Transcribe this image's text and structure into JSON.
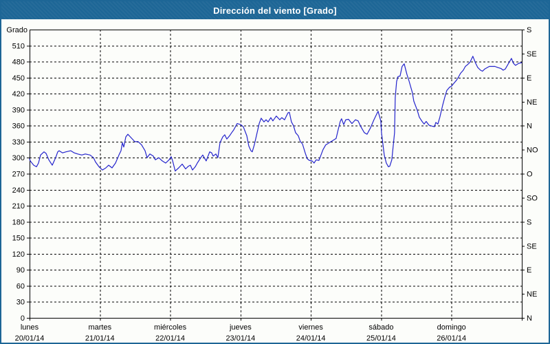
{
  "header": {
    "title": "Dirección del viento [Grado]"
  },
  "colors": {
    "accent": "#1D6696",
    "line": "#2222CC",
    "grid": "#000000",
    "plot_bg": "#FCFDFA",
    "title_text": "#FFFFFF"
  },
  "y_axis": {
    "label": "Grado",
    "ticks": [
      0,
      30,
      60,
      90,
      120,
      150,
      180,
      210,
      240,
      270,
      300,
      330,
      360,
      390,
      420,
      450,
      480,
      510
    ]
  },
  "right_axis": {
    "ticks": [
      {
        "deg": 0,
        "label": "N"
      },
      {
        "deg": 45,
        "label": "NE"
      },
      {
        "deg": 90,
        "label": "E"
      },
      {
        "deg": 135,
        "label": "SE"
      },
      {
        "deg": 180,
        "label": "S"
      },
      {
        "deg": 225,
        "label": "SO"
      },
      {
        "deg": 270,
        "label": "O"
      },
      {
        "deg": 315,
        "label": "NO"
      },
      {
        "deg": 360,
        "label": "N"
      },
      {
        "deg": 405,
        "label": "NE"
      },
      {
        "deg": 450,
        "label": "E"
      },
      {
        "deg": 495,
        "label": "SE"
      },
      {
        "deg": 540,
        "label": "S"
      }
    ]
  },
  "x_axis": {
    "days": [
      {
        "name": "lunes",
        "date": "20/01/14"
      },
      {
        "name": "martes",
        "date": "21/01/14"
      },
      {
        "name": "miércoles",
        "date": "22/01/14"
      },
      {
        "name": "jueves",
        "date": "23/01/14"
      },
      {
        "name": "viernes",
        "date": "24/01/14"
      },
      {
        "name": "sábado",
        "date": "25/01/14"
      },
      {
        "name": "domingo",
        "date": "26/01/14"
      }
    ]
  },
  "chart_data": {
    "type": "line",
    "title": "Dirección del viento [Grado]",
    "xlabel": "",
    "ylabel": "Grado",
    "ylim": [
      0,
      540
    ],
    "y_tick_step": 30,
    "grid": true,
    "legend": false,
    "x_unit": "days (t = days since 20/01/14 00:00)",
    "categories": [
      "lunes 20/01/14",
      "martes 21/01/14",
      "miércoles 22/01/14",
      "jueves 23/01/14",
      "viernes 24/01/14",
      "sábado 25/01/14",
      "domingo 26/01/14"
    ],
    "series": [
      {
        "name": "Dirección del viento (Grado)",
        "color": "#2222CC",
        "points": [
          [
            0,
            298
          ],
          [
            0.01,
            294
          ],
          [
            0.059,
            286
          ],
          [
            0.098,
            283
          ],
          [
            0.127,
            290
          ],
          [
            0.156,
            305
          ],
          [
            0.205,
            311
          ],
          [
            0.235,
            308
          ],
          [
            0.274,
            296
          ],
          [
            0.323,
            286
          ],
          [
            0.371,
            300
          ],
          [
            0.401,
            311
          ],
          [
            0.42,
            313
          ],
          [
            0.469,
            309
          ],
          [
            0.518,
            311
          ],
          [
            0.587,
            313
          ],
          [
            0.635,
            309
          ],
          [
            0.684,
            307
          ],
          [
            0.743,
            305
          ],
          [
            0.792,
            307
          ],
          [
            0.86,
            305
          ],
          [
            0.909,
            300
          ],
          [
            0.938,
            292
          ],
          [
            0.987,
            283
          ],
          [
            1.036,
            277
          ],
          [
            1.085,
            281
          ],
          [
            1.124,
            286
          ],
          [
            1.173,
            281
          ],
          [
            1.222,
            290
          ],
          [
            1.271,
            305
          ],
          [
            1.3,
            313
          ],
          [
            1.32,
            328
          ],
          [
            1.339,
            320
          ],
          [
            1.369,
            339
          ],
          [
            1.398,
            344
          ],
          [
            1.447,
            337
          ],
          [
            1.496,
            330
          ],
          [
            1.545,
            330
          ],
          [
            1.593,
            324
          ],
          [
            1.642,
            313
          ],
          [
            1.671,
            300
          ],
          [
            1.711,
            307
          ],
          [
            1.76,
            303
          ],
          [
            1.789,
            296
          ],
          [
            1.838,
            300
          ],
          [
            1.887,
            294
          ],
          [
            1.936,
            290
          ],
          [
            1.984,
            296
          ],
          [
            2.014,
            302
          ],
          [
            2.033,
            295
          ],
          [
            2.072,
            275
          ],
          [
            2.121,
            281
          ],
          [
            2.17,
            288
          ],
          [
            2.219,
            279
          ],
          [
            2.258,
            284
          ],
          [
            2.287,
            286
          ],
          [
            2.317,
            277
          ],
          [
            2.356,
            283
          ],
          [
            2.385,
            290
          ],
          [
            2.434,
            300
          ],
          [
            2.463,
            305
          ],
          [
            2.512,
            294
          ],
          [
            2.561,
            311
          ],
          [
            2.59,
            309
          ],
          [
            2.61,
            303
          ],
          [
            2.649,
            307
          ],
          [
            2.678,
            300
          ],
          [
            2.708,
            328
          ],
          [
            2.747,
            339
          ],
          [
            2.776,
            343
          ],
          [
            2.805,
            335
          ],
          [
            2.844,
            341
          ],
          [
            2.874,
            347
          ],
          [
            2.903,
            352
          ],
          [
            2.952,
            364
          ],
          [
            3.001,
            362
          ],
          [
            3.04,
            358
          ],
          [
            3.089,
            341
          ],
          [
            3.118,
            322
          ],
          [
            3.148,
            313
          ],
          [
            3.167,
            311
          ],
          [
            3.196,
            324
          ],
          [
            3.236,
            347
          ],
          [
            3.265,
            364
          ],
          [
            3.294,
            374
          ],
          [
            3.333,
            367
          ],
          [
            3.363,
            371
          ],
          [
            3.392,
            367
          ],
          [
            3.431,
            375
          ],
          [
            3.46,
            369
          ],
          [
            3.509,
            378
          ],
          [
            3.558,
            371
          ],
          [
            3.587,
            375
          ],
          [
            3.626,
            371
          ],
          [
            3.675,
            384
          ],
          [
            3.695,
            385
          ],
          [
            3.724,
            367
          ],
          [
            3.753,
            360
          ],
          [
            3.783,
            347
          ],
          [
            3.822,
            341
          ],
          [
            3.851,
            330
          ],
          [
            3.88,
            326
          ],
          [
            3.919,
            309
          ],
          [
            3.949,
            298
          ],
          [
            3.978,
            295
          ],
          [
            4.017,
            294
          ],
          [
            4.046,
            290
          ],
          [
            4.076,
            296
          ],
          [
            4.115,
            295
          ],
          [
            4.144,
            305
          ],
          [
            4.173,
            315
          ],
          [
            4.212,
            324
          ],
          [
            4.261,
            328
          ],
          [
            4.31,
            332
          ],
          [
            4.359,
            336
          ],
          [
            4.388,
            352
          ],
          [
            4.418,
            368
          ],
          [
            4.437,
            373
          ],
          [
            4.467,
            362
          ],
          [
            4.496,
            371
          ],
          [
            4.535,
            372
          ],
          [
            4.584,
            364
          ],
          [
            4.633,
            371
          ],
          [
            4.672,
            369
          ],
          [
            4.711,
            358
          ],
          [
            4.76,
            347
          ],
          [
            4.799,
            344
          ],
          [
            4.848,
            356
          ],
          [
            4.897,
            371
          ],
          [
            4.926,
            379
          ],
          [
            4.956,
            387
          ],
          [
            4.995,
            369
          ],
          [
            5.005,
            347
          ],
          [
            5.024,
            326
          ],
          [
            5.044,
            305
          ],
          [
            5.073,
            290
          ],
          [
            5.103,
            283
          ],
          [
            5.122,
            284
          ],
          [
            5.151,
            296
          ],
          [
            5.19,
            347
          ],
          [
            5.2,
            413
          ],
          [
            5.22,
            443
          ],
          [
            5.239,
            452
          ],
          [
            5.269,
            453
          ],
          [
            5.298,
            471
          ],
          [
            5.327,
            476
          ],
          [
            5.366,
            456
          ],
          [
            5.396,
            444
          ],
          [
            5.444,
            422
          ],
          [
            5.464,
            406
          ],
          [
            5.513,
            389
          ],
          [
            5.542,
            376
          ],
          [
            5.581,
            368
          ],
          [
            5.611,
            363
          ],
          [
            5.64,
            368
          ],
          [
            5.679,
            361
          ],
          [
            5.728,
            359
          ],
          [
            5.757,
            358
          ],
          [
            5.777,
            366
          ],
          [
            5.806,
            363
          ],
          [
            5.835,
            376
          ],
          [
            5.874,
            398
          ],
          [
            5.904,
            413
          ],
          [
            5.933,
            426
          ],
          [
            5.972,
            432
          ],
          [
            6.001,
            434
          ],
          [
            6.031,
            439
          ],
          [
            6.07,
            445
          ],
          [
            6.099,
            451
          ],
          [
            6.128,
            458
          ],
          [
            6.168,
            464
          ],
          [
            6.197,
            471
          ],
          [
            6.226,
            474
          ],
          [
            6.265,
            479
          ],
          [
            6.304,
            490
          ],
          [
            6.343,
            477
          ],
          [
            6.373,
            469
          ],
          [
            6.412,
            464
          ],
          [
            6.441,
            462
          ],
          [
            6.471,
            466
          ],
          [
            6.51,
            469
          ],
          [
            6.539,
            471
          ],
          [
            6.578,
            471
          ],
          [
            6.617,
            471
          ],
          [
            6.656,
            469
          ],
          [
            6.705,
            467
          ],
          [
            6.735,
            464
          ],
          [
            6.764,
            466
          ],
          [
            6.812,
            477
          ],
          [
            6.852,
            486
          ],
          [
            6.881,
            477
          ],
          [
            6.91,
            473
          ],
          [
            6.959,
            477
          ],
          [
            6.998,
            478
          ]
        ]
      }
    ]
  }
}
